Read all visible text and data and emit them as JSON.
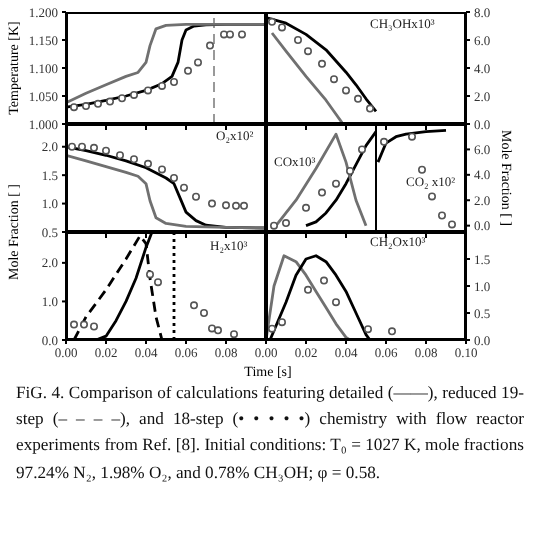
{
  "chart_data": [
    {
      "type": "line",
      "ylabel": "Temperature [K]",
      "xlim": [
        0,
        0.1
      ],
      "xticks": [
        0,
        0.02,
        0.04,
        0.06,
        0.08,
        0.1
      ],
      "ylim": [
        1.0,
        1.2
      ],
      "yticks": [
        {
          "value": 1,
          "label": "1.000"
        },
        {
          "value": 1.05,
          "label": "1.050"
        },
        {
          "value": 1.1,
          "label": "1.100"
        },
        {
          "value": 1.15,
          "label": "1.150"
        },
        {
          "value": 1.2,
          "label": "1.200"
        }
      ],
      "tick_labels": "y",
      "series": [
        {
          "type": "line",
          "color": "#000000",
          "marker": "none",
          "line_style": "solid",
          "x": [
            0,
            0.01,
            0.02,
            0.03,
            0.04,
            0.048,
            0.053,
            0.056,
            0.058,
            0.06,
            0.064,
            0.07,
            0.08,
            0.1
          ],
          "values": [
            1.03,
            1.035,
            1.042,
            1.05,
            1.06,
            1.072,
            1.085,
            1.11,
            1.15,
            1.168,
            1.175,
            1.177,
            1.178,
            1.178
          ]
        },
        {
          "type": "line",
          "color": "#707070",
          "marker": "none",
          "line_style": "solid",
          "x": [
            0,
            0.01,
            0.02,
            0.03,
            0.036,
            0.04,
            0.042,
            0.045,
            0.05,
            0.06,
            0.08,
            0.1
          ],
          "values": [
            1.038,
            1.055,
            1.07,
            1.085,
            1.092,
            1.11,
            1.14,
            1.17,
            1.176,
            1.178,
            1.178,
            1.178
          ]
        },
        {
          "type": "scatter",
          "color": "#555555",
          "marker": "circle",
          "x": [
            0.004,
            0.01,
            0.016,
            0.022,
            0.028,
            0.034,
            0.041,
            0.048,
            0.054,
            0.061,
            0.066,
            0.072,
            0.079,
            0.082,
            0.088
          ],
          "values": [
            1.03,
            1.032,
            1.036,
            1.04,
            1.046,
            1.052,
            1.06,
            1.068,
            1.075,
            1.095,
            1.11,
            1.14,
            1.16,
            1.16,
            1.16
          ]
        }
      ],
      "ref_lines": [
        {
          "axis": "x",
          "value": 0.074,
          "color": "#999999",
          "line_style": "dashed"
        }
      ]
    },
    {
      "type": "line",
      "xlim": [
        0,
        0.1
      ],
      "xticks": [
        0,
        0.02,
        0.04,
        0.06,
        0.08,
        0.1
      ],
      "ylim": [
        0,
        8
      ],
      "yticks": [
        {
          "value": 0,
          "label": "0.0"
        },
        {
          "value": 2,
          "label": "2.0"
        },
        {
          "value": 4,
          "label": "4.0"
        },
        {
          "value": 6,
          "label": "6.0"
        },
        {
          "value": 8,
          "label": "8.0"
        }
      ],
      "tick_labels": "y",
      "annotations": [
        "CH₃OHx10³"
      ],
      "series": [
        {
          "type": "line",
          "color": "#000000",
          "marker": "none",
          "line_style": "solid",
          "x": [
            0,
            0.01,
            0.02,
            0.03,
            0.04,
            0.045,
            0.05,
            0.055
          ],
          "values": [
            7.6,
            7.2,
            6.4,
            5.3,
            3.7,
            2.8,
            1.8,
            0.9
          ]
        },
        {
          "type": "line",
          "color": "#707070",
          "marker": "none",
          "line_style": "solid",
          "x": [
            0.003,
            0.01,
            0.02,
            0.03,
            0.035,
            0.038
          ],
          "values": [
            6.5,
            5.2,
            3.4,
            1.7,
            0.7,
            0.1
          ]
        },
        {
          "type": "scatter",
          "color": "#555555",
          "marker": "circle",
          "x": [
            0.003,
            0.008,
            0.016,
            0.021,
            0.028,
            0.034,
            0.04,
            0.046,
            0.052
          ],
          "values": [
            7.3,
            6.9,
            6.0,
            5.2,
            4.3,
            3.2,
            2.4,
            1.8,
            1.1
          ]
        }
      ]
    },
    {
      "type": "line",
      "ylabel": "Mole Fraction [ ]",
      "xlim": [
        0,
        0.1
      ],
      "xticks": [
        0,
        0.02,
        0.04,
        0.06,
        0.08,
        0.1
      ],
      "ylim": [
        0.5,
        2.4
      ],
      "yticks": [
        {
          "value": 0.5,
          "label": "0.5"
        },
        {
          "value": 1,
          "label": "1.0"
        },
        {
          "value": 1.5,
          "label": "1.5"
        },
        {
          "value": 2,
          "label": "2.0"
        }
      ],
      "tick_labels": "y",
      "annotations": [
        "O₂x10²"
      ],
      "series": [
        {
          "type": "line",
          "color": "#000000",
          "marker": "none",
          "line_style": "solid",
          "x": [
            0,
            0.01,
            0.02,
            0.03,
            0.04,
            0.05,
            0.054,
            0.057,
            0.06,
            0.065,
            0.07,
            0.08,
            0.1
          ],
          "values": [
            2.0,
            1.93,
            1.85,
            1.75,
            1.63,
            1.45,
            1.35,
            1.1,
            0.85,
            0.7,
            0.62,
            0.58,
            0.57
          ]
        },
        {
          "type": "line",
          "color": "#707070",
          "marker": "none",
          "line_style": "solid",
          "x": [
            0,
            0.01,
            0.02,
            0.03,
            0.036,
            0.04,
            0.042,
            0.045,
            0.05,
            0.06,
            0.08,
            0.1
          ],
          "values": [
            1.85,
            1.75,
            1.65,
            1.55,
            1.48,
            1.35,
            1.05,
            0.75,
            0.65,
            0.6,
            0.58,
            0.57
          ]
        },
        {
          "type": "scatter",
          "color": "#555555",
          "marker": "circle",
          "x": [
            0.003,
            0.008,
            0.014,
            0.02,
            0.027,
            0.034,
            0.041,
            0.048,
            0.054,
            0.059,
            0.065,
            0.073,
            0.08,
            0.085,
            0.089
          ],
          "values": [
            2.0,
            2.0,
            1.98,
            1.93,
            1.85,
            1.78,
            1.7,
            1.6,
            1.45,
            1.28,
            1.12,
            1.0,
            0.97,
            0.96,
            0.96
          ]
        }
      ]
    },
    {
      "type": "line",
      "ylabel": "Mole Fraction [ ]",
      "xlim": [
        0,
        0.1
      ],
      "xticks": [
        0,
        0.02,
        0.04,
        0.06,
        0.08,
        0.1
      ],
      "ylim": [
        -0.5,
        8
      ],
      "yticks": [
        {
          "value": 0,
          "label": "0.0"
        },
        {
          "value": 2,
          "label": "2.0"
        },
        {
          "value": 4,
          "label": "4.0"
        },
        {
          "value": 6,
          "label": "6.0"
        }
      ],
      "tick_labels": "y",
      "annotations": [
        "COx10³",
        "CO₂ x10²"
      ],
      "series": [
        {
          "type": "line",
          "color": "#000000",
          "marker": "none",
          "line_style": "solid",
          "x": [
            0.02,
            0.025,
            0.03,
            0.035,
            0.04,
            0.045,
            0.05,
            0.055
          ],
          "values": [
            0,
            0.3,
            1.0,
            2.0,
            3.3,
            4.8,
            6.3,
            7.4
          ]
        },
        {
          "type": "line",
          "color": "#707070",
          "marker": "none",
          "line_style": "solid",
          "x": [
            0.005,
            0.015,
            0.025,
            0.035,
            0.04,
            0.045,
            0.05
          ],
          "values": [
            0,
            2.0,
            4.5,
            7.2,
            5.0,
            2.0,
            0
          ]
        },
        {
          "type": "scatter",
          "color": "#555555",
          "marker": "circle",
          "x": [
            0.004,
            0.01,
            0.02,
            0.028,
            0.035,
            0.042,
            0.048
          ],
          "values": [
            0,
            0.2,
            1.4,
            2.6,
            3.3,
            4.3,
            6.0
          ]
        },
        {
          "type": "line",
          "color": "#000000",
          "marker": "none",
          "line_style": "solid",
          "x": [
            0.056,
            0.06,
            0.065,
            0.07,
            0.08,
            0.09
          ],
          "values": [
            5.0,
            6.5,
            7.0,
            7.2,
            7.4,
            7.5
          ]
        },
        {
          "type": "scatter",
          "color": "#555555",
          "marker": "circle",
          "x": [
            0.059,
            0.073,
            0.078,
            0.083,
            0.088,
            0.093
          ],
          "values": [
            6.6,
            7.0,
            4.4,
            2.3,
            0.8,
            0.1
          ]
        }
      ],
      "ref_lines": [
        {
          "axis": "x",
          "value": 0.055,
          "color": "#000000",
          "line_style": "solid"
        }
      ]
    },
    {
      "type": "line",
      "xlabel": "Time [s]",
      "xlim": [
        0,
        0.1
      ],
      "xticks": [
        {
          "value": 0,
          "label": "0.00"
        },
        {
          "value": 0.02,
          "label": "0.02"
        },
        {
          "value": 0.04,
          "label": "0.04"
        },
        {
          "value": 0.06,
          "label": "0.06"
        },
        {
          "value": 0.08,
          "label": "0.08"
        },
        {
          "value": 0.1,
          "label": null
        }
      ],
      "ylim": [
        0,
        2.8
      ],
      "yticks": [
        {
          "value": 0,
          "label": "0.0"
        },
        {
          "value": 1,
          "label": "1.0"
        },
        {
          "value": 2,
          "label": "2.0"
        }
      ],
      "annotations": [
        "H₂x10³"
      ],
      "series": [
        {
          "type": "line",
          "color": "#000000",
          "marker": "none",
          "line_style": "dashed",
          "x": [
            0.004,
            0.01,
            0.02,
            0.03,
            0.037,
            0.04,
            0.042,
            0.045,
            0.048
          ],
          "values": [
            0,
            0.6,
            1.3,
            2.1,
            2.7,
            2.5,
            1.6,
            0.6,
            0
          ]
        },
        {
          "type": "line",
          "color": "#000000",
          "marker": "none",
          "line_style": "solid",
          "x": [
            0.015,
            0.02,
            0.025,
            0.03,
            0.035,
            0.04,
            0.043
          ],
          "values": [
            0,
            0.1,
            0.5,
            1.0,
            1.6,
            2.4,
            2.8
          ]
        },
        {
          "type": "line",
          "color": "#000000",
          "marker": "none",
          "line_style": "dotted",
          "x": [
            0.054,
            0.054
          ],
          "values": [
            0,
            2.8
          ]
        },
        {
          "type": "scatter",
          "color": "#555555",
          "marker": "circle",
          "x": [
            0.004,
            0.009,
            0.014,
            0.042,
            0.046,
            0.064,
            0.069,
            0.073,
            0.076,
            0.084
          ],
          "values": [
            0.4,
            0.4,
            0.35,
            1.7,
            1.5,
            0.9,
            0.7,
            0.3,
            0.25,
            0.15
          ]
        }
      ]
    },
    {
      "type": "line",
      "xlim": [
        0,
        0.1
      ],
      "xticks": [
        {
          "value": 0,
          "label": "0.00"
        },
        {
          "value": 0.02,
          "label": "0.02"
        },
        {
          "value": 0.04,
          "label": "0.04"
        },
        {
          "value": 0.06,
          "label": "0.06"
        },
        {
          "value": 0.08,
          "label": "0.08"
        },
        {
          "value": 0.1,
          "label": "0.10"
        }
      ],
      "ylim": [
        0,
        2.0
      ],
      "yticks": [
        {
          "value": 0,
          "label": "0.0"
        },
        {
          "value": 0.5,
          "label": "0.5"
        },
        {
          "value": 1,
          "label": "1.0"
        },
        {
          "value": 1.5,
          "label": "1.5"
        }
      ],
      "annotations": [
        "CH₂Ox10³"
      ],
      "series": [
        {
          "type": "line",
          "color": "#707070",
          "marker": "none",
          "line_style": "solid",
          "x": [
            0,
            0.004,
            0.009,
            0.015,
            0.02,
            0.025,
            0.03,
            0.035,
            0.04,
            0.042
          ],
          "values": [
            0,
            1.0,
            1.56,
            1.45,
            1.2,
            0.9,
            0.6,
            0.3,
            0.05,
            0
          ]
        },
        {
          "type": "line",
          "color": "#000000",
          "marker": "none",
          "line_style": "solid",
          "x": [
            0.002,
            0.01,
            0.015,
            0.02,
            0.025,
            0.03,
            0.035,
            0.04,
            0.045,
            0.05,
            0.052
          ],
          "values": [
            0,
            0.7,
            1.2,
            1.5,
            1.56,
            1.45,
            1.2,
            0.9,
            0.5,
            0.1,
            0
          ]
        },
        {
          "type": "scatter",
          "color": "#555555",
          "marker": "circle",
          "x": [
            0.003,
            0.008,
            0.021,
            0.029,
            0.035,
            0.051,
            0.063
          ],
          "values": [
            0.21,
            0.33,
            0.93,
            1.1,
            0.7,
            0.2,
            0.16
          ]
        }
      ]
    },
    {
      "type": "other",
      "annotations": [
        "FiG. 4. Comparison of calculations featuring detailed (——), reduced 19-step (– – – –), and 18-step (• • • • •) chemistry with flow reactor experiments from Ref. [8]. Initial conditions: T₀ = 1027 K, mole fractions 97.24% N₂, 1.98% O₂, and 0.78% CH₃OH; φ = 0.58."
      ]
    }
  ]
}
